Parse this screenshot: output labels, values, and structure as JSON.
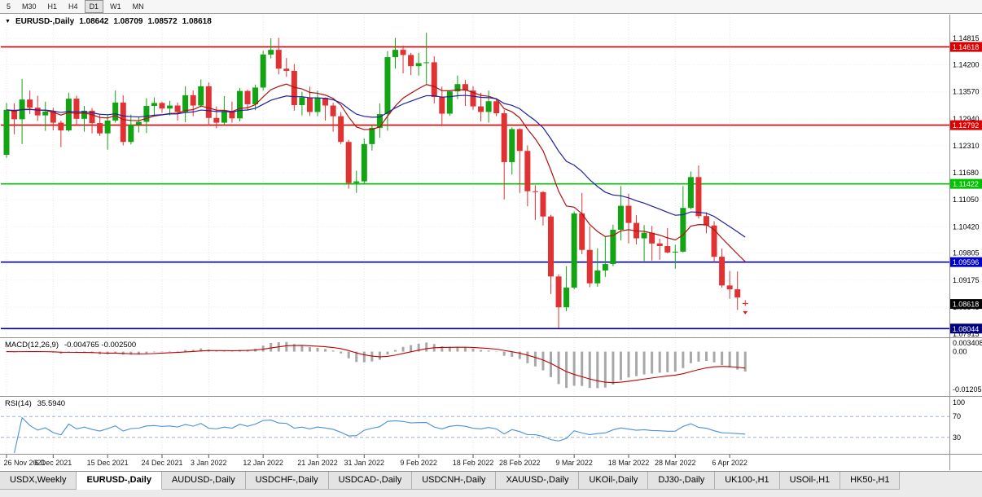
{
  "toolbar": {
    "timeframes": [
      "5",
      "M30",
      "H1",
      "H4",
      "D1",
      "W1",
      "MN"
    ],
    "active": "D1"
  },
  "chart": {
    "collapse_icon": "▼",
    "symbol_title": "EURUSD-,Daily",
    "open": "1.08642",
    "high": "1.08709",
    "low": "1.08572",
    "close": "1.08618"
  },
  "indicators": {
    "macd_label": "MACD(12,26,9)",
    "macd_values": "-0.004765 -0.002500",
    "rsi_label": "RSI(14)",
    "rsi_value": "35.5940"
  },
  "tabs": {
    "items": [
      "USDX,Weekly",
      "EURUSD-,Daily",
      "AUDUSD-,Daily",
      "USDCHF-,Daily",
      "USDCAD-,Daily",
      "USDCNH-,Daily",
      "XAUUSD-,Daily",
      "UKOil-,Daily",
      "DJ30-,Daily",
      "UK100-,H1",
      "USOil-,H1",
      "HK50-,H1"
    ],
    "active": "EURUSD-,Daily"
  },
  "chart_data": {
    "type": "candlestick",
    "symbol": "EURUSD-",
    "timeframe": "Daily",
    "title": "EURUSD-,Daily",
    "current_ohlc": {
      "open": 1.08642,
      "high": 1.08709,
      "low": 1.08572,
      "close": 1.08618
    },
    "price_range": [
      1.0784,
      1.1539
    ],
    "y_ticks": [
      "1.14815",
      "1.14200",
      "1.13570",
      "1.12940",
      "1.12310",
      "1.11680",
      "1.11050",
      "1.10420",
      "1.09805",
      "1.09175",
      "1.08545",
      "1.07915"
    ],
    "x_labels": [
      {
        "i": 0,
        "label": "26 Nov 2021"
      },
      {
        "i": 6,
        "label": "6 Dec 2021"
      },
      {
        "i": 13,
        "label": "15 Dec 2021"
      },
      {
        "i": 20,
        "label": "24 Dec 2021"
      },
      {
        "i": 26,
        "label": "3 Jan 2022"
      },
      {
        "i": 33,
        "label": "12 Jan 2022"
      },
      {
        "i": 40,
        "label": "21 Jan 2022"
      },
      {
        "i": 46,
        "label": "31 Jan 2022"
      },
      {
        "i": 53,
        "label": "9 Feb 2022"
      },
      {
        "i": 60,
        "label": "18 Feb 2022"
      },
      {
        "i": 66,
        "label": "28 Feb 2022"
      },
      {
        "i": 73,
        "label": "9 Mar 2022"
      },
      {
        "i": 80,
        "label": "18 Mar 2022"
      },
      {
        "i": 86,
        "label": "28 Mar 2022"
      },
      {
        "i": 93,
        "label": "6 Apr 2022"
      }
    ],
    "candles": [
      [
        1.121,
        1.1331,
        1.1203,
        1.1315
      ],
      [
        1.1315,
        1.133,
        1.1258,
        1.1293
      ],
      [
        1.1293,
        1.1387,
        1.1235,
        1.1339
      ],
      [
        1.1339,
        1.136,
        1.1305,
        1.132
      ],
      [
        1.132,
        1.1348,
        1.1289,
        1.1302
      ],
      [
        1.1302,
        1.1334,
        1.1266,
        1.1311
      ],
      [
        1.1311,
        1.132,
        1.1267,
        1.1285
      ],
      [
        1.1285,
        1.129,
        1.1228,
        1.1267
      ],
      [
        1.1267,
        1.1355,
        1.1264,
        1.1341
      ],
      [
        1.1341,
        1.1348,
        1.128,
        1.1294
      ],
      [
        1.1294,
        1.1324,
        1.1264,
        1.1313
      ],
      [
        1.1313,
        1.1319,
        1.126,
        1.1284
      ],
      [
        1.1284,
        1.1303,
        1.1254,
        1.126
      ],
      [
        1.126,
        1.1303,
        1.1222,
        1.129
      ],
      [
        1.129,
        1.136,
        1.1285,
        1.1332
      ],
      [
        1.1332,
        1.1349,
        1.1232,
        1.124
      ],
      [
        1.124,
        1.1304,
        1.1234,
        1.128
      ],
      [
        1.128,
        1.1298,
        1.1262,
        1.1287
      ],
      [
        1.1287,
        1.1342,
        1.1261,
        1.1324
      ],
      [
        1.1324,
        1.1344,
        1.13,
        1.1331
      ],
      [
        1.1331,
        1.1334,
        1.1308,
        1.1318
      ],
      [
        1.1318,
        1.1336,
        1.1302,
        1.1325
      ],
      [
        1.1325,
        1.1332,
        1.129,
        1.131
      ],
      [
        1.131,
        1.137,
        1.1286,
        1.1349
      ],
      [
        1.1349,
        1.136,
        1.13,
        1.1325
      ],
      [
        1.1325,
        1.1386,
        1.1321,
        1.137
      ],
      [
        1.137,
        1.1379,
        1.1278,
        1.1296
      ],
      [
        1.1296,
        1.1323,
        1.1272,
        1.1285
      ],
      [
        1.1285,
        1.1347,
        1.128,
        1.1312
      ],
      [
        1.1312,
        1.1334,
        1.1285,
        1.1295
      ],
      [
        1.1295,
        1.1366,
        1.1288,
        1.1359
      ],
      [
        1.1359,
        1.1362,
        1.1313,
        1.1328
      ],
      [
        1.1328,
        1.1374,
        1.1314,
        1.1367
      ],
      [
        1.1367,
        1.1453,
        1.136,
        1.1444
      ],
      [
        1.1444,
        1.1482,
        1.1435,
        1.1455
      ],
      [
        1.1455,
        1.1483,
        1.1398,
        1.1411
      ],
      [
        1.1411,
        1.1436,
        1.1392,
        1.1406
      ],
      [
        1.1406,
        1.1422,
        1.1313,
        1.1326
      ],
      [
        1.1326,
        1.1357,
        1.1302,
        1.1344
      ],
      [
        1.1344,
        1.1369,
        1.1301,
        1.131
      ],
      [
        1.131,
        1.136,
        1.13,
        1.1343
      ],
      [
        1.1343,
        1.1344,
        1.129,
        1.1325
      ],
      [
        1.1325,
        1.1331,
        1.1264,
        1.13
      ],
      [
        1.13,
        1.131,
        1.1235,
        1.124
      ],
      [
        1.124,
        1.1245,
        1.1131,
        1.1144
      ],
      [
        1.1144,
        1.1173,
        1.1121,
        1.1148
      ],
      [
        1.1148,
        1.1248,
        1.1141,
        1.1235
      ],
      [
        1.1235,
        1.1279,
        1.122,
        1.1273
      ],
      [
        1.1273,
        1.133,
        1.125,
        1.1305
      ],
      [
        1.1305,
        1.1452,
        1.1266,
        1.1438
      ],
      [
        1.1438,
        1.1483,
        1.1411,
        1.1455
      ],
      [
        1.1455,
        1.1465,
        1.14,
        1.1443
      ],
      [
        1.1443,
        1.1448,
        1.1396,
        1.1417
      ],
      [
        1.1417,
        1.1448,
        1.1395,
        1.1424
      ],
      [
        1.1424,
        1.1495,
        1.1375,
        1.1426
      ],
      [
        1.1426,
        1.144,
        1.133,
        1.1345
      ],
      [
        1.1345,
        1.1369,
        1.1277,
        1.1306
      ],
      [
        1.1306,
        1.136,
        1.1301,
        1.1358
      ],
      [
        1.1358,
        1.1395,
        1.134,
        1.1375
      ],
      [
        1.1375,
        1.1385,
        1.1324,
        1.136
      ],
      [
        1.136,
        1.137,
        1.1315,
        1.1323
      ],
      [
        1.1323,
        1.1355,
        1.1288,
        1.131
      ],
      [
        1.131,
        1.136,
        1.1285,
        1.1335
      ],
      [
        1.1335,
        1.1342,
        1.13,
        1.1307
      ],
      [
        1.1307,
        1.1315,
        1.1106,
        1.1193
      ],
      [
        1.1193,
        1.1274,
        1.1164,
        1.127
      ],
      [
        1.127,
        1.1272,
        1.1121,
        1.1219
      ],
      [
        1.1219,
        1.1232,
        1.109,
        1.1125
      ],
      [
        1.1125,
        1.1139,
        1.1058,
        1.1123
      ],
      [
        1.1123,
        1.1125,
        1.1045,
        1.1066
      ],
      [
        1.1066,
        1.107,
        1.0885,
        1.0926
      ],
      [
        1.0926,
        1.0931,
        1.0806,
        1.0854
      ],
      [
        1.0854,
        1.095,
        1.0845,
        1.09
      ],
      [
        1.09,
        1.1078,
        1.0896,
        1.1073
      ],
      [
        1.1073,
        1.1121,
        1.0978,
        1.0988
      ],
      [
        1.0988,
        1.1043,
        1.0901,
        1.091
      ],
      [
        1.091,
        1.0992,
        1.0902,
        1.094
      ],
      [
        1.094,
        1.102,
        1.0925,
        1.0955
      ],
      [
        1.0955,
        1.1047,
        1.095,
        1.1035
      ],
      [
        1.1035,
        1.1137,
        1.101,
        1.1091
      ],
      [
        1.1091,
        1.1119,
        1.1003,
        1.1051
      ],
      [
        1.1051,
        1.1069,
        1.1001,
        1.1015
      ],
      [
        1.1015,
        1.1046,
        1.0962,
        1.1028
      ],
      [
        1.1028,
        1.1044,
        1.0963,
        1.1003
      ],
      [
        1.1003,
        1.1014,
        1.0965,
        1.0997
      ],
      [
        1.0997,
        1.1039,
        1.098,
        1.0982
      ],
      [
        1.0982,
        1.1,
        1.0944,
        1.0984
      ],
      [
        1.0984,
        1.1137,
        1.0982,
        1.1086
      ],
      [
        1.1086,
        1.1171,
        1.1083,
        1.1158
      ],
      [
        1.1158,
        1.1185,
        1.1061,
        1.1067
      ],
      [
        1.1067,
        1.1076,
        1.1027,
        1.1045
      ],
      [
        1.1045,
        1.1055,
        1.096,
        1.0972
      ],
      [
        1.0972,
        1.0991,
        1.09,
        1.0905
      ],
      [
        1.0905,
        1.0939,
        1.0874,
        1.0896
      ],
      [
        1.0896,
        1.0938,
        1.0848,
        1.0877
      ],
      [
        1.08642,
        1.08709,
        1.08572,
        1.08618
      ]
    ],
    "candle_colors": {
      "up": "#12A412",
      "down": "#E03232"
    },
    "moving_averages": [
      {
        "type": "EMA",
        "period": 12,
        "color": "#B01010"
      },
      {
        "type": "EMA",
        "period": 26,
        "color": "#2020A0"
      }
    ],
    "levels": [
      {
        "price": 1.14618,
        "label": "1.14618",
        "color": "#DD0000"
      },
      {
        "price": 1.12792,
        "label": "1.12792",
        "color": "#DD0000"
      },
      {
        "price": 1.11422,
        "label": "1.11422",
        "color": "#00C400"
      },
      {
        "price": 1.09596,
        "label": "1.09596",
        "color": "#0000CC"
      },
      {
        "price": 1.08044,
        "label": "1.08044",
        "color": "#000080"
      }
    ],
    "current_price_badge": {
      "price": 1.08618,
      "label": "1.08618",
      "bg": "#000000"
    },
    "marker": {
      "index": 95,
      "price": 1.0845,
      "type": "arrow-down",
      "color": "#DD2020"
    },
    "macd": {
      "params": "12,26,9",
      "main": -0.004765,
      "signal": -0.0025,
      "range": [
        -0.01205,
        0.003408
      ],
      "ticks": [
        {
          "v": 0.003408,
          "label": "0.003408"
        },
        {
          "v": 0,
          "label": "0.00"
        },
        {
          "v": -0.01205,
          "label": "-0.01205"
        }
      ],
      "hist_color": "#A8A8A8",
      "signal_color": "#C00000"
    },
    "rsi": {
      "period": 14,
      "value": 35.594,
      "range": [
        0,
        100
      ],
      "ticks": [
        100,
        70,
        30
      ],
      "levels": [
        70,
        30
      ],
      "color": "#4A90D9"
    }
  }
}
